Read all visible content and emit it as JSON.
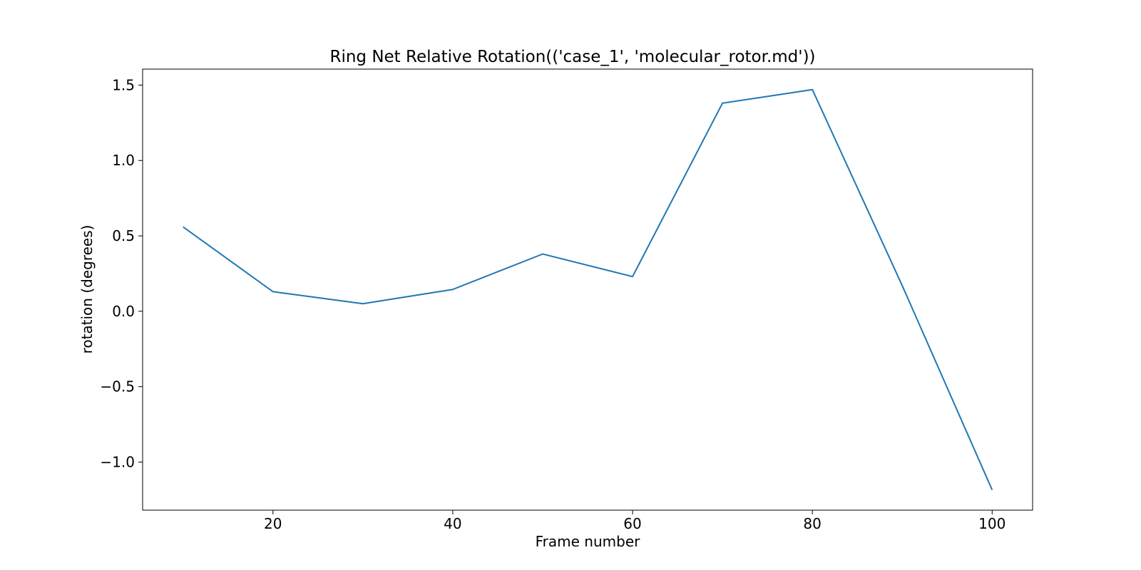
{
  "chart_data": {
    "type": "line",
    "title": "Ring Net Relative Rotation(('case_1', 'molecular_rotor.md'))",
    "xlabel": "Frame number",
    "ylabel": "rotation (degrees)",
    "xlim": [
      5.5,
      104.5
    ],
    "ylim": [
      -1.319,
      1.606
    ],
    "xticks": [
      20,
      40,
      60,
      80,
      100
    ],
    "yticks": [
      1.5,
      1.0,
      0.5,
      0.0,
      -0.5,
      -1.0
    ],
    "xtick_labels": [
      "20",
      "40",
      "60",
      "80",
      "100"
    ],
    "ytick_labels": [
      "1.5",
      "1.0",
      "0.5",
      "0.0",
      "−0.5",
      "−1.0"
    ],
    "grid": false,
    "line_color": "#1f77b4",
    "series": [
      {
        "x": [
          10,
          20,
          30,
          40,
          50,
          60,
          70,
          80,
          90,
          100
        ],
        "y": [
          0.56,
          0.13,
          0.05,
          0.145,
          0.38,
          0.23,
          1.38,
          1.47,
          0.17,
          -1.185
        ]
      }
    ]
  }
}
